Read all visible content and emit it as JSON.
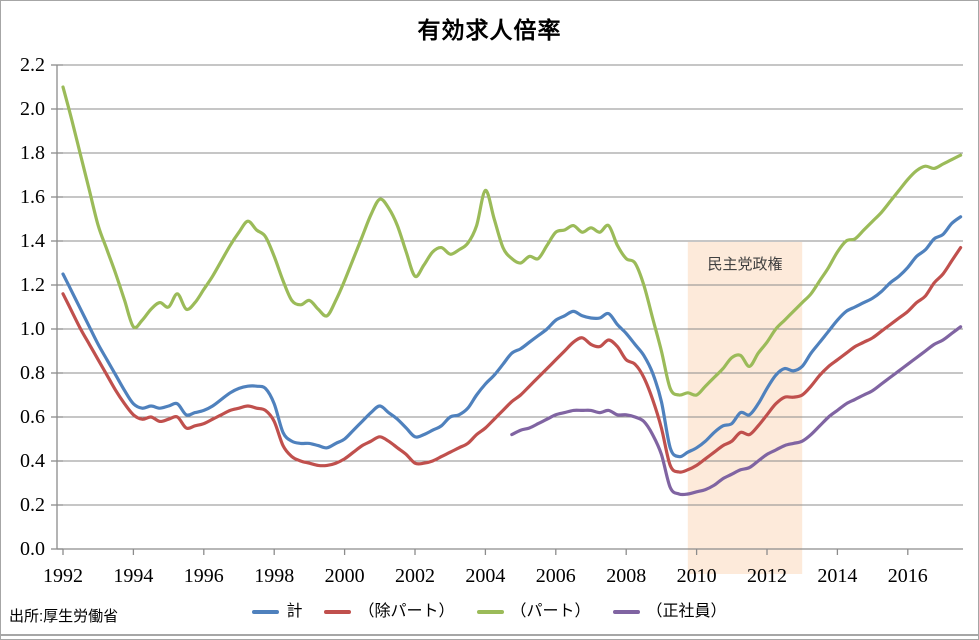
{
  "page": {
    "title": "有効求人倍率",
    "source": "出所:厚生労働省"
  },
  "chart_data": {
    "type": "line",
    "title": "有効求人倍率",
    "xlabel": "",
    "ylabel": "",
    "grid": true,
    "legend_position": "bottom",
    "y_axis": {
      "range": [
        0.0,
        2.2
      ],
      "step": 0.2,
      "tick_labels": [
        "0.0",
        "0.2",
        "0.4",
        "0.6",
        "0.8",
        "1.0",
        "1.2",
        "1.4",
        "1.6",
        "1.8",
        "2.0",
        "2.2"
      ]
    },
    "x_axis": {
      "range": [
        1992,
        2017.6
      ],
      "tick_years": [
        1992,
        1994,
        1996,
        1998,
        2000,
        2002,
        2004,
        2006,
        2008,
        2010,
        2012,
        2014,
        2016
      ],
      "tick_labels": [
        "1992",
        "1994",
        "1996",
        "1998",
        "2000",
        "2002",
        "2004",
        "2006",
        "2008",
        "2010",
        "2012",
        "2014",
        "2016"
      ]
    },
    "annotation": {
      "text": "民主党政権",
      "x_start": 2009.75,
      "x_end": 2013.0,
      "band_color": "#fdeada",
      "text_color": "#404040"
    },
    "series": [
      {
        "name": "計",
        "color": "#4F81BD",
        "x_start": 1992.0,
        "x_step": 0.25,
        "values": [
          1.25,
          1.17,
          1.09,
          1.01,
          0.93,
          0.86,
          0.79,
          0.72,
          0.66,
          0.64,
          0.65,
          0.64,
          0.65,
          0.66,
          0.61,
          0.62,
          0.63,
          0.65,
          0.68,
          0.71,
          0.73,
          0.74,
          0.74,
          0.73,
          0.66,
          0.53,
          0.49,
          0.48,
          0.48,
          0.47,
          0.46,
          0.48,
          0.5,
          0.54,
          0.58,
          0.62,
          0.65,
          0.62,
          0.59,
          0.55,
          0.51,
          0.52,
          0.54,
          0.56,
          0.6,
          0.61,
          0.64,
          0.7,
          0.75,
          0.79,
          0.84,
          0.89,
          0.91,
          0.94,
          0.97,
          1.0,
          1.04,
          1.06,
          1.08,
          1.06,
          1.05,
          1.05,
          1.07,
          1.02,
          0.98,
          0.93,
          0.88,
          0.8,
          0.67,
          0.46,
          0.42,
          0.44,
          0.46,
          0.49,
          0.53,
          0.56,
          0.57,
          0.62,
          0.61,
          0.66,
          0.73,
          0.79,
          0.82,
          0.81,
          0.83,
          0.89,
          0.94,
          0.99,
          1.04,
          1.08,
          1.1,
          1.12,
          1.14,
          1.17,
          1.21,
          1.24,
          1.28,
          1.33,
          1.36,
          1.41,
          1.43,
          1.48,
          1.51
        ]
      },
      {
        "name": "（除パート）",
        "color": "#C0504D",
        "x_start": 1992.0,
        "x_step": 0.25,
        "values": [
          1.16,
          1.08,
          1.0,
          0.93,
          0.86,
          0.79,
          0.72,
          0.66,
          0.61,
          0.59,
          0.6,
          0.58,
          0.59,
          0.6,
          0.55,
          0.56,
          0.57,
          0.59,
          0.61,
          0.63,
          0.64,
          0.65,
          0.64,
          0.63,
          0.58,
          0.47,
          0.42,
          0.4,
          0.39,
          0.38,
          0.38,
          0.39,
          0.41,
          0.44,
          0.47,
          0.49,
          0.51,
          0.49,
          0.46,
          0.43,
          0.39,
          0.39,
          0.4,
          0.42,
          0.44,
          0.46,
          0.48,
          0.52,
          0.55,
          0.59,
          0.63,
          0.67,
          0.7,
          0.74,
          0.78,
          0.82,
          0.86,
          0.9,
          0.94,
          0.96,
          0.93,
          0.92,
          0.95,
          0.92,
          0.86,
          0.84,
          0.78,
          0.68,
          0.55,
          0.38,
          0.35,
          0.36,
          0.38,
          0.41,
          0.44,
          0.47,
          0.49,
          0.53,
          0.52,
          0.56,
          0.61,
          0.66,
          0.69,
          0.69,
          0.7,
          0.74,
          0.79,
          0.83,
          0.86,
          0.89,
          0.92,
          0.94,
          0.96,
          0.99,
          1.02,
          1.05,
          1.08,
          1.12,
          1.15,
          1.21,
          1.25,
          1.31,
          1.37
        ]
      },
      {
        "name": "（パート）",
        "color": "#9BBB59",
        "x_start": 1992.0,
        "x_step": 0.25,
        "values": [
          2.1,
          1.95,
          1.79,
          1.63,
          1.47,
          1.36,
          1.25,
          1.13,
          1.01,
          1.04,
          1.09,
          1.12,
          1.1,
          1.16,
          1.09,
          1.12,
          1.18,
          1.24,
          1.31,
          1.38,
          1.44,
          1.49,
          1.45,
          1.42,
          1.33,
          1.22,
          1.13,
          1.11,
          1.13,
          1.09,
          1.06,
          1.13,
          1.22,
          1.32,
          1.42,
          1.52,
          1.59,
          1.55,
          1.47,
          1.35,
          1.24,
          1.29,
          1.35,
          1.37,
          1.34,
          1.36,
          1.39,
          1.47,
          1.63,
          1.5,
          1.37,
          1.32,
          1.3,
          1.33,
          1.32,
          1.38,
          1.44,
          1.45,
          1.47,
          1.44,
          1.46,
          1.44,
          1.47,
          1.38,
          1.32,
          1.3,
          1.2,
          1.05,
          0.9,
          0.73,
          0.7,
          0.71,
          0.7,
          0.74,
          0.78,
          0.82,
          0.87,
          0.88,
          0.83,
          0.89,
          0.94,
          1.0,
          1.04,
          1.08,
          1.12,
          1.16,
          1.22,
          1.28,
          1.35,
          1.4,
          1.41,
          1.45,
          1.49,
          1.53,
          1.58,
          1.63,
          1.68,
          1.72,
          1.74,
          1.73,
          1.75,
          1.77,
          1.79
        ]
      },
      {
        "name": "（正社員）",
        "color": "#8064A2",
        "x_start": 2004.75,
        "x_step": 0.25,
        "values": [
          0.52,
          0.54,
          0.55,
          0.57,
          0.59,
          0.61,
          0.62,
          0.63,
          0.63,
          0.63,
          0.62,
          0.63,
          0.61,
          0.61,
          0.6,
          0.58,
          0.52,
          0.43,
          0.28,
          0.25,
          0.25,
          0.26,
          0.27,
          0.29,
          0.32,
          0.34,
          0.36,
          0.37,
          0.4,
          0.43,
          0.45,
          0.47,
          0.48,
          0.49,
          0.52,
          0.56,
          0.6,
          0.63,
          0.66,
          0.68,
          0.7,
          0.72,
          0.75,
          0.78,
          0.81,
          0.84,
          0.87,
          0.9,
          0.93,
          0.95,
          0.98,
          1.01
        ]
      }
    ],
    "colors": {
      "axis": "#8c8c8c",
      "gridline": "#8c8c8c"
    }
  }
}
